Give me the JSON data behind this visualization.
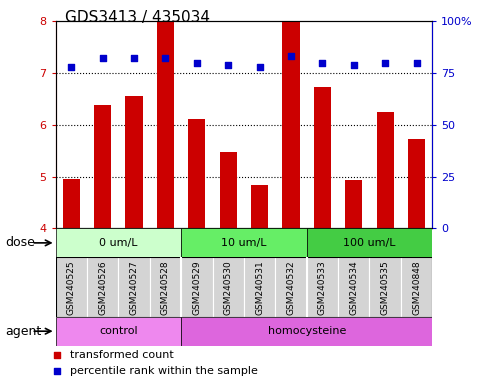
{
  "title": "GDS3413 / 435034",
  "samples": [
    "GSM240525",
    "GSM240526",
    "GSM240527",
    "GSM240528",
    "GSM240529",
    "GSM240530",
    "GSM240531",
    "GSM240532",
    "GSM240533",
    "GSM240534",
    "GSM240535",
    "GSM240848"
  ],
  "transformed_count": [
    4.95,
    6.38,
    6.55,
    8.0,
    6.12,
    5.47,
    4.83,
    8.0,
    6.72,
    4.94,
    6.25,
    5.72
  ],
  "percentile_rank": [
    78,
    82,
    82,
    82,
    80,
    79,
    78,
    83,
    80,
    79,
    80,
    80
  ],
  "ylim_left": [
    4,
    8
  ],
  "ylim_right": [
    0,
    100
  ],
  "yticks_left": [
    4,
    5,
    6,
    7,
    8
  ],
  "yticks_right": [
    0,
    25,
    50,
    75,
    100
  ],
  "ytick_right_labels": [
    "0",
    "25",
    "50",
    "75",
    "100%"
  ],
  "bar_color": "#cc0000",
  "dot_color": "#0000cc",
  "bar_bottom": 4,
  "dose_groups": [
    {
      "label": "0 um/L",
      "start": 0,
      "end": 4,
      "color": "#ccffcc"
    },
    {
      "label": "10 um/L",
      "start": 4,
      "end": 8,
      "color": "#66ee66"
    },
    {
      "label": "100 um/L",
      "start": 8,
      "end": 12,
      "color": "#44cc44"
    }
  ],
  "agent_groups": [
    {
      "label": "control",
      "start": 0,
      "end": 4,
      "color": "#ee88ee"
    },
    {
      "label": "homocysteine",
      "start": 4,
      "end": 12,
      "color": "#dd66dd"
    }
  ],
  "dose_label": "dose",
  "agent_label": "agent",
  "legend_bar_label": "transformed count",
  "legend_dot_label": "percentile rank within the sample",
  "sample_bg_color": "#d4d4d4",
  "title_fontsize": 11,
  "tick_fontsize": 8,
  "label_fontsize": 9,
  "group_fontsize": 8,
  "sample_fontsize": 6.5,
  "legend_fontsize": 8
}
